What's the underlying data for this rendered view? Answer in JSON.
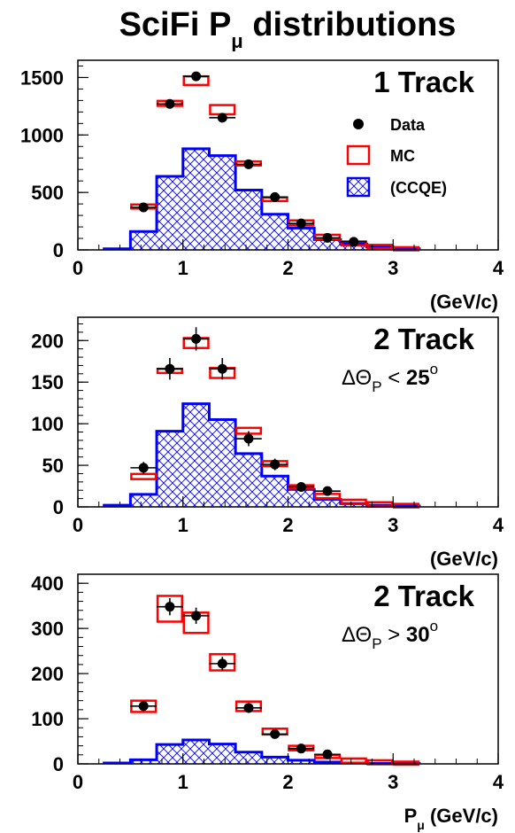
{
  "title": {
    "main": "SciFi P",
    "sub": "μ",
    "tail": " distributions"
  },
  "legend": [
    {
      "label": "Data",
      "type": "data",
      "color": "#000000"
    },
    {
      "label": "MC",
      "type": "mc",
      "color": "#ff0000"
    },
    {
      "label": "(CCQE)",
      "type": "ccqe",
      "color": "#0000ff"
    }
  ],
  "colors": {
    "data": "#000000",
    "mc": "#ff0000",
    "ccqe": "#0000ff"
  },
  "chart_data": [
    {
      "type": "bar",
      "panel_title": "1 Track",
      "cut_label": "",
      "xlabel": "(GeV/c)",
      "xlim": [
        0,
        4
      ],
      "ylim": [
        0,
        1650
      ],
      "yticks": [
        0,
        500,
        1000,
        1500
      ],
      "xticks": [
        0,
        1,
        2,
        3,
        4
      ],
      "bin_width": 0.25,
      "ccqe_bins": [
        {
          "x0": 0.25,
          "y": 10
        },
        {
          "x0": 0.5,
          "y": 160
        },
        {
          "x0": 0.75,
          "y": 640
        },
        {
          "x0": 1.0,
          "y": 880
        },
        {
          "x0": 1.25,
          "y": 820
        },
        {
          "x0": 1.5,
          "y": 520
        },
        {
          "x0": 1.75,
          "y": 310
        },
        {
          "x0": 2.0,
          "y": 190
        },
        {
          "x0": 2.25,
          "y": 90
        },
        {
          "x0": 2.5,
          "y": 50
        },
        {
          "x0": 2.75,
          "y": 25
        },
        {
          "x0": 3.0,
          "y": 10
        }
      ],
      "mc": [
        {
          "x": 0.625,
          "lo": 360,
          "hi": 395
        },
        {
          "x": 0.875,
          "lo": 1265,
          "hi": 1285
        },
        {
          "x": 1.125,
          "lo": 1435,
          "hi": 1510
        },
        {
          "x": 1.375,
          "lo": 1180,
          "hi": 1260
        },
        {
          "x": 1.625,
          "lo": 735,
          "hi": 770
        },
        {
          "x": 1.875,
          "lo": 425,
          "hi": 455
        },
        {
          "x": 2.125,
          "lo": 225,
          "hi": 245
        },
        {
          "x": 2.375,
          "lo": 105,
          "hi": 120
        },
        {
          "x": 2.625,
          "lo": 50,
          "hi": 62
        },
        {
          "x": 2.875,
          "lo": 25,
          "hi": 32
        },
        {
          "x": 3.125,
          "lo": 8,
          "hi": 12
        }
      ],
      "data": [
        {
          "x": 0.625,
          "y": 370,
          "err": 19
        },
        {
          "x": 0.875,
          "y": 1270,
          "err": 36
        },
        {
          "x": 1.125,
          "y": 1510,
          "err": 39
        },
        {
          "x": 1.375,
          "y": 1150,
          "err": 34
        },
        {
          "x": 1.625,
          "y": 745,
          "err": 27
        },
        {
          "x": 1.875,
          "y": 460,
          "err": 21
        },
        {
          "x": 2.125,
          "y": 230,
          "err": 15
        },
        {
          "x": 2.375,
          "y": 105,
          "err": 10
        },
        {
          "x": 2.625,
          "y": 70,
          "err": 8
        }
      ]
    },
    {
      "type": "bar",
      "panel_title": "2 Track",
      "cut_label": "ΔΘP < 25°",
      "xlabel": "(GeV/c)",
      "xlim": [
        0,
        4
      ],
      "ylim": [
        0,
        228
      ],
      "yticks": [
        0,
        50,
        100,
        150,
        200
      ],
      "xticks": [
        0,
        1,
        2,
        3,
        4
      ],
      "bin_width": 0.25,
      "ccqe_bins": [
        {
          "x0": 0.25,
          "y": 2
        },
        {
          "x0": 0.5,
          "y": 15
        },
        {
          "x0": 0.75,
          "y": 91
        },
        {
          "x0": 1.0,
          "y": 124
        },
        {
          "x0": 1.25,
          "y": 105
        },
        {
          "x0": 1.5,
          "y": 64
        },
        {
          "x0": 1.75,
          "y": 37
        },
        {
          "x0": 2.0,
          "y": 21
        },
        {
          "x0": 2.25,
          "y": 9
        },
        {
          "x0": 2.5,
          "y": 4
        },
        {
          "x0": 2.75,
          "y": 2
        },
        {
          "x0": 3.0,
          "y": 1
        }
      ],
      "mc": [
        {
          "x": 0.625,
          "lo": 35,
          "hi": 38
        },
        {
          "x": 0.875,
          "lo": 161,
          "hi": 166
        },
        {
          "x": 1.125,
          "lo": 191,
          "hi": 203
        },
        {
          "x": 1.375,
          "lo": 155,
          "hi": 167
        },
        {
          "x": 1.625,
          "lo": 88,
          "hi": 95
        },
        {
          "x": 1.875,
          "lo": 49,
          "hi": 55
        },
        {
          "x": 2.125,
          "lo": 22,
          "hi": 26
        },
        {
          "x": 2.375,
          "lo": 12,
          "hi": 14
        },
        {
          "x": 2.625,
          "lo": 5,
          "hi": 7
        },
        {
          "x": 2.875,
          "lo": 2,
          "hi": 4
        },
        {
          "x": 3.125,
          "lo": 1,
          "hi": 2
        }
      ],
      "data": [
        {
          "x": 0.625,
          "y": 47,
          "err": 7
        },
        {
          "x": 0.875,
          "y": 166,
          "err": 13
        },
        {
          "x": 1.125,
          "y": 202,
          "err": 14
        },
        {
          "x": 1.375,
          "y": 166,
          "err": 13
        },
        {
          "x": 1.625,
          "y": 82,
          "err": 9
        },
        {
          "x": 1.875,
          "y": 51,
          "err": 7
        },
        {
          "x": 2.125,
          "y": 24,
          "err": 5
        },
        {
          "x": 2.375,
          "y": 19,
          "err": 4
        }
      ]
    },
    {
      "type": "bar",
      "panel_title": "2 Track",
      "cut_label": "ΔΘP > 30°",
      "xlabel": "Pμ (GeV/c)",
      "xlim": [
        0,
        4
      ],
      "ylim": [
        0,
        420
      ],
      "yticks": [
        0,
        100,
        200,
        300,
        400
      ],
      "xticks": [
        0,
        1,
        2,
        3,
        4
      ],
      "bin_width": 0.25,
      "ccqe_bins": [
        {
          "x0": 0.25,
          "y": 2
        },
        {
          "x0": 0.5,
          "y": 9
        },
        {
          "x0": 0.75,
          "y": 43
        },
        {
          "x0": 1.0,
          "y": 53
        },
        {
          "x0": 1.25,
          "y": 44
        },
        {
          "x0": 1.5,
          "y": 26
        },
        {
          "x0": 1.75,
          "y": 15
        },
        {
          "x0": 2.0,
          "y": 8
        },
        {
          "x0": 2.25,
          "y": 4
        },
        {
          "x0": 2.5,
          "y": 2
        },
        {
          "x0": 2.75,
          "y": 1
        },
        {
          "x0": 3.0,
          "y": 1
        }
      ],
      "mc": [
        {
          "x": 0.625,
          "lo": 115,
          "hi": 140
        },
        {
          "x": 0.875,
          "lo": 315,
          "hi": 372
        },
        {
          "x": 1.125,
          "lo": 290,
          "hi": 335
        },
        {
          "x": 1.375,
          "lo": 207,
          "hi": 243
        },
        {
          "x": 1.625,
          "lo": 117,
          "hi": 138
        },
        {
          "x": 1.875,
          "lo": 65,
          "hi": 78
        },
        {
          "x": 2.125,
          "lo": 30,
          "hi": 40
        },
        {
          "x": 2.375,
          "lo": 13,
          "hi": 20
        },
        {
          "x": 2.625,
          "lo": 5,
          "hi": 9
        },
        {
          "x": 2.875,
          "lo": 2,
          "hi": 5
        },
        {
          "x": 3.125,
          "lo": 1,
          "hi": 2
        }
      ],
      "data": [
        {
          "x": 0.625,
          "y": 128,
          "err": 11
        },
        {
          "x": 0.875,
          "y": 348,
          "err": 19
        },
        {
          "x": 1.125,
          "y": 328,
          "err": 18
        },
        {
          "x": 1.375,
          "y": 222,
          "err": 15
        },
        {
          "x": 1.625,
          "y": 124,
          "err": 11
        },
        {
          "x": 1.875,
          "y": 66,
          "err": 8
        },
        {
          "x": 2.125,
          "y": 34,
          "err": 6
        },
        {
          "x": 2.375,
          "y": 21,
          "err": 5
        }
      ]
    }
  ]
}
